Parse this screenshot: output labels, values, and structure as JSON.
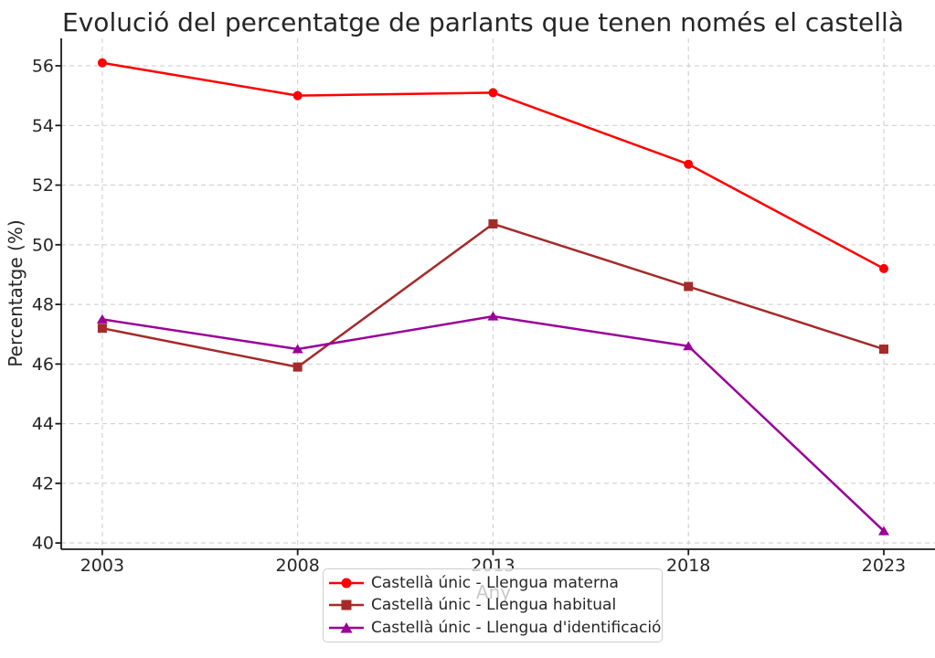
{
  "chart_data": {
    "type": "line",
    "title": "Evolució del percentatge de parlants que tenen només el castellà",
    "xlabel": "Any",
    "ylabel": "Percentatge (%)",
    "x": [
      2003,
      2008,
      2013,
      2018,
      2023
    ],
    "x_tick_labels": [
      "2003",
      "2008",
      "2013",
      "2018",
      "2023"
    ],
    "y_ticks": [
      40,
      42,
      44,
      46,
      48,
      50,
      52,
      54,
      56
    ],
    "xlim": [
      2001.95,
      2024.31
    ],
    "ylim": [
      39.79,
      56.92
    ],
    "grid": true,
    "grid_style": "dashed",
    "legend_position": "lower center, overlapping x-axis label",
    "series": [
      {
        "name": "Castellà únic - Llengua materna",
        "color": "#ff0000",
        "marker": "circle",
        "values": [
          56.1,
          55.0,
          55.1,
          52.7,
          49.2
        ]
      },
      {
        "name": "Castellà únic - Llengua habitual",
        "color": "#a52a2a",
        "marker": "square",
        "values": [
          47.2,
          45.9,
          50.7,
          48.6,
          46.5
        ]
      },
      {
        "name": "Castellà únic - Llengua d'identificació",
        "color": "#990099",
        "marker": "triangle",
        "values": [
          47.5,
          46.5,
          47.6,
          46.6,
          40.4
        ]
      }
    ],
    "colors": {
      "background": "#ffffff",
      "grid": "#cccccc",
      "spine": "#1a1a1a",
      "tick_text": "#262626",
      "title_text": "#262626",
      "legend_border": "#cccccc"
    }
  }
}
